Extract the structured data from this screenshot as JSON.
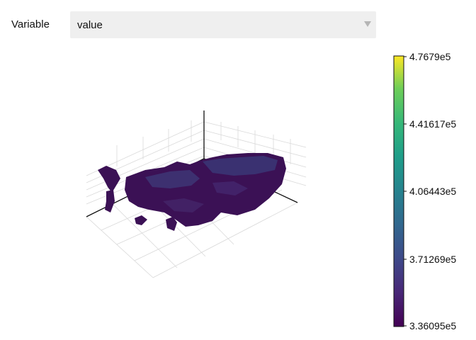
{
  "controls": {
    "variable_label": "Variable",
    "selected_value": "value"
  },
  "colorbar": {
    "ticks": [
      "4.7679e5",
      "4.41617e5",
      "4.06443e5",
      "3.71269e5",
      "3.36095e5"
    ],
    "colormap": "viridis",
    "range": [
      336095,
      476790
    ]
  },
  "plot": {
    "type": "3d-surface-map",
    "colors": {
      "dark": "#3b0f55",
      "mid": "#3e3b7a",
      "accent": "#3d5a8a",
      "axis": "#111111",
      "grid": "#d8d8d8"
    }
  }
}
